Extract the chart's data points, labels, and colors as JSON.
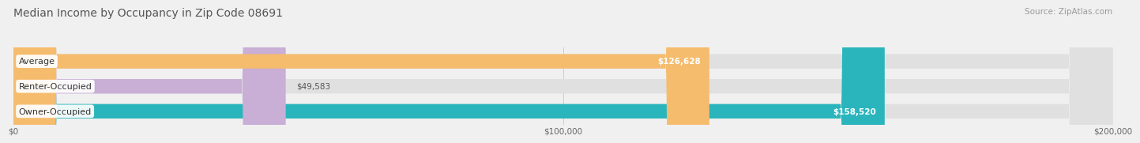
{
  "title": "Median Income by Occupancy in Zip Code 08691",
  "source": "Source: ZipAtlas.com",
  "categories": [
    "Owner-Occupied",
    "Renter-Occupied",
    "Average"
  ],
  "values": [
    158520,
    49583,
    126628
  ],
  "labels": [
    "$158,520",
    "$49,583",
    "$126,628"
  ],
  "bar_colors": [
    "#2ab5bc",
    "#c9aed6",
    "#f5bc6e"
  ],
  "xlim": [
    0,
    200000
  ],
  "xticks": [
    0,
    100000,
    200000
  ],
  "xtick_labels": [
    "$0",
    "$100,000",
    "$200,000"
  ],
  "title_fontsize": 10,
  "source_fontsize": 7.5,
  "bar_label_fontsize": 7.5,
  "category_fontsize": 8,
  "background_color": "#f0f0f0",
  "bar_background_color": "#e0e0e0",
  "bar_height": 0.58
}
